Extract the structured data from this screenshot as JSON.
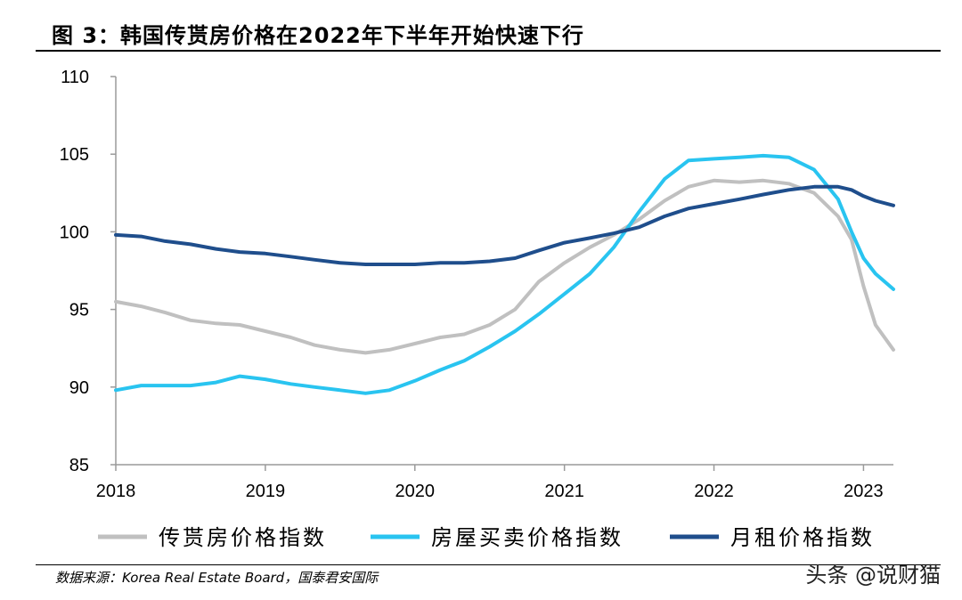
{
  "figure": {
    "title": "图 3：韩国传贳房价格在2022年下半年开始快速下行",
    "source": "数据来源：Korea Real Estate Board，国泰君安国际",
    "watermark": "头条 @说财猫"
  },
  "chart_data": {
    "type": "line",
    "title": "图 3：韩国传贳房价格在2022年下半年开始快速下行",
    "xlabel": "",
    "ylabel": "",
    "xlim": [
      2018.0,
      2023.2
    ],
    "ylim": [
      85,
      110
    ],
    "y_ticks": [
      85,
      90,
      95,
      100,
      105,
      110
    ],
    "x_ticks": [
      2018,
      2019,
      2020,
      2021,
      2022,
      2023
    ],
    "grid": false,
    "legend_position": "bottom",
    "series": [
      {
        "name": "传贳房价格指数",
        "color": "#c0c0c0",
        "points": [
          [
            2018.0,
            95.5
          ],
          [
            2018.17,
            95.2
          ],
          [
            2018.33,
            94.8
          ],
          [
            2018.5,
            94.3
          ],
          [
            2018.67,
            94.1
          ],
          [
            2018.83,
            94.0
          ],
          [
            2019.0,
            93.6
          ],
          [
            2019.17,
            93.2
          ],
          [
            2019.33,
            92.7
          ],
          [
            2019.5,
            92.4
          ],
          [
            2019.67,
            92.2
          ],
          [
            2019.83,
            92.4
          ],
          [
            2020.0,
            92.8
          ],
          [
            2020.17,
            93.2
          ],
          [
            2020.33,
            93.4
          ],
          [
            2020.5,
            94.0
          ],
          [
            2020.67,
            95.0
          ],
          [
            2020.83,
            96.8
          ],
          [
            2021.0,
            98.0
          ],
          [
            2021.17,
            99.0
          ],
          [
            2021.33,
            99.8
          ],
          [
            2021.5,
            100.8
          ],
          [
            2021.67,
            102.0
          ],
          [
            2021.83,
            102.9
          ],
          [
            2022.0,
            103.3
          ],
          [
            2022.17,
            103.2
          ],
          [
            2022.33,
            103.3
          ],
          [
            2022.5,
            103.1
          ],
          [
            2022.67,
            102.5
          ],
          [
            2022.83,
            101.0
          ],
          [
            2022.92,
            99.5
          ],
          [
            2023.0,
            96.5
          ],
          [
            2023.08,
            94.0
          ],
          [
            2023.2,
            92.4
          ]
        ]
      },
      {
        "name": "房屋买卖价格指数",
        "color": "#29c4f0",
        "points": [
          [
            2018.0,
            89.8
          ],
          [
            2018.17,
            90.1
          ],
          [
            2018.33,
            90.1
          ],
          [
            2018.5,
            90.1
          ],
          [
            2018.67,
            90.3
          ],
          [
            2018.83,
            90.7
          ],
          [
            2019.0,
            90.5
          ],
          [
            2019.17,
            90.2
          ],
          [
            2019.33,
            90.0
          ],
          [
            2019.5,
            89.8
          ],
          [
            2019.67,
            89.6
          ],
          [
            2019.83,
            89.8
          ],
          [
            2020.0,
            90.4
          ],
          [
            2020.17,
            91.1
          ],
          [
            2020.33,
            91.7
          ],
          [
            2020.5,
            92.6
          ],
          [
            2020.67,
            93.6
          ],
          [
            2020.83,
            94.7
          ],
          [
            2021.0,
            96.0
          ],
          [
            2021.17,
            97.3
          ],
          [
            2021.33,
            99.0
          ],
          [
            2021.5,
            101.3
          ],
          [
            2021.67,
            103.4
          ],
          [
            2021.83,
            104.6
          ],
          [
            2022.0,
            104.7
          ],
          [
            2022.17,
            104.8
          ],
          [
            2022.33,
            104.9
          ],
          [
            2022.5,
            104.8
          ],
          [
            2022.67,
            104.0
          ],
          [
            2022.83,
            102.1
          ],
          [
            2022.92,
            100.0
          ],
          [
            2023.0,
            98.3
          ],
          [
            2023.08,
            97.3
          ],
          [
            2023.2,
            96.3
          ]
        ]
      },
      {
        "name": "月租价格指数",
        "color": "#1f4e8c",
        "points": [
          [
            2018.0,
            99.8
          ],
          [
            2018.17,
            99.7
          ],
          [
            2018.33,
            99.4
          ],
          [
            2018.5,
            99.2
          ],
          [
            2018.67,
            98.9
          ],
          [
            2018.83,
            98.7
          ],
          [
            2019.0,
            98.6
          ],
          [
            2019.17,
            98.4
          ],
          [
            2019.33,
            98.2
          ],
          [
            2019.5,
            98.0
          ],
          [
            2019.67,
            97.9
          ],
          [
            2019.83,
            97.9
          ],
          [
            2020.0,
            97.9
          ],
          [
            2020.17,
            98.0
          ],
          [
            2020.33,
            98.0
          ],
          [
            2020.5,
            98.1
          ],
          [
            2020.67,
            98.3
          ],
          [
            2020.83,
            98.8
          ],
          [
            2021.0,
            99.3
          ],
          [
            2021.17,
            99.6
          ],
          [
            2021.33,
            99.9
          ],
          [
            2021.5,
            100.3
          ],
          [
            2021.67,
            101.0
          ],
          [
            2021.83,
            101.5
          ],
          [
            2022.0,
            101.8
          ],
          [
            2022.17,
            102.1
          ],
          [
            2022.33,
            102.4
          ],
          [
            2022.5,
            102.7
          ],
          [
            2022.67,
            102.9
          ],
          [
            2022.83,
            102.9
          ],
          [
            2022.92,
            102.7
          ],
          [
            2023.0,
            102.3
          ],
          [
            2023.08,
            102.0
          ],
          [
            2023.2,
            101.7
          ]
        ]
      }
    ]
  }
}
